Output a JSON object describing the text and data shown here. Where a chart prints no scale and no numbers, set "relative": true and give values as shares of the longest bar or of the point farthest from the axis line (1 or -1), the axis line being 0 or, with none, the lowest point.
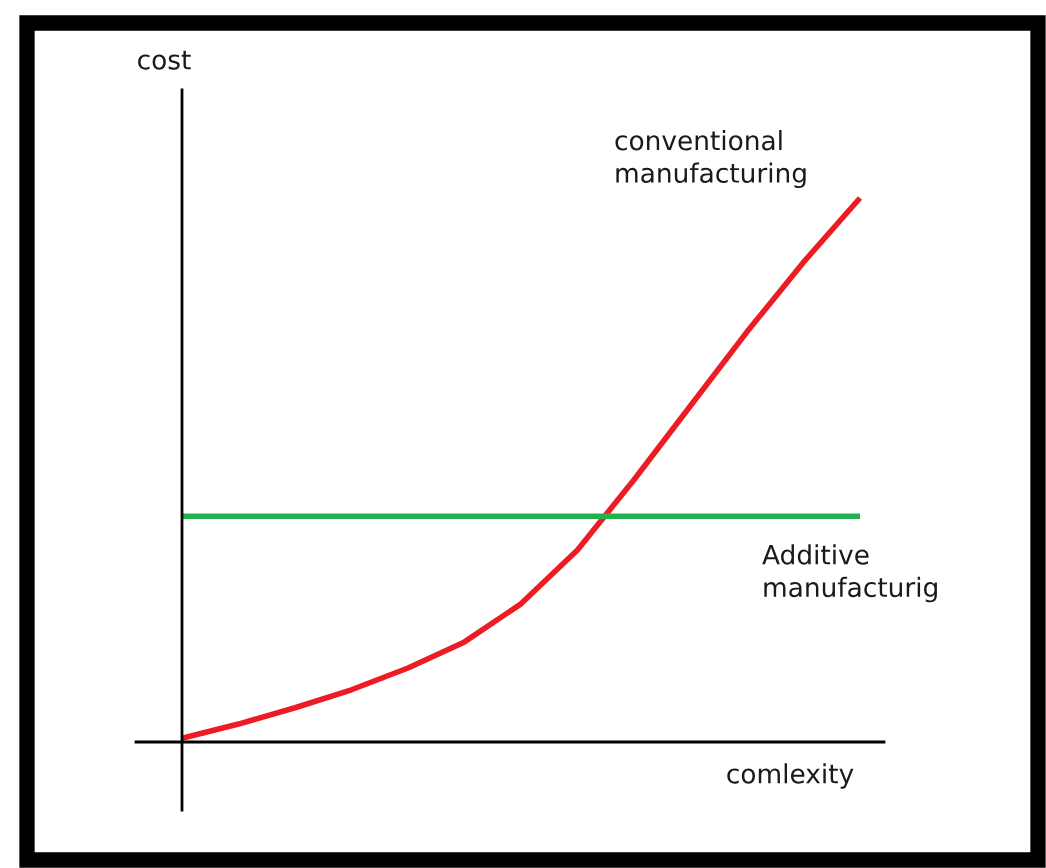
{
  "chart_data": {
    "type": "line",
    "relative": true,
    "xlabel": "comlexity",
    "ylabel": "cost",
    "categories": [
      null,
      null,
      null,
      null,
      null,
      null,
      null,
      null,
      null,
      null,
      null,
      null,
      null
    ],
    "series": [
      {
        "name": "conventional manufacturing",
        "color": "#ed1c24",
        "values": [
          0.007,
          0.033,
          0.063,
          0.096,
          0.136,
          0.184,
          0.254,
          0.353,
          0.482,
          0.618,
          0.754,
          0.882,
          1.0
        ]
      },
      {
        "name": "Additive manufacturig",
        "color": "#22b14c",
        "values": [
          0.415,
          0.415,
          0.415,
          0.415,
          0.415,
          0.415,
          0.415,
          0.415,
          0.415,
          0.415,
          0.415,
          0.415,
          0.415
        ]
      }
    ],
    "legend": false,
    "marker": "none",
    "line_style": "solid"
  }
}
